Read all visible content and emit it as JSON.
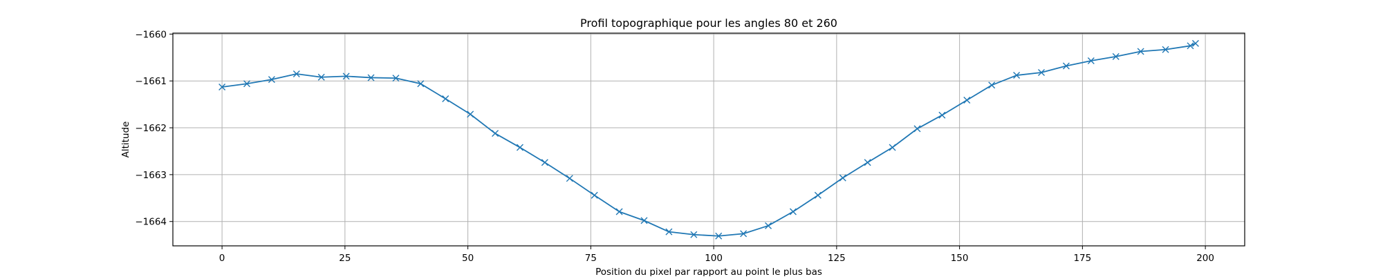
{
  "chart_data": {
    "type": "line",
    "title": "Profil topographique pour les angles 80 et 260",
    "xlabel": "Position du pixel par rapport au point le plus bas",
    "ylabel": "Altitude",
    "xlim": [
      -10,
      208
    ],
    "ylim": [
      -1664.52,
      -1659.98
    ],
    "xticks": [
      0,
      25,
      50,
      75,
      100,
      125,
      150,
      175,
      200
    ],
    "yticks": [
      -1660,
      -1661,
      -1662,
      -1663,
      -1664
    ],
    "x_tick_labels": [
      "0",
      "25",
      "50",
      "75",
      "100",
      "125",
      "150",
      "175",
      "200"
    ],
    "y_tick_labels": [
      "−1660",
      "−1661",
      "−1662",
      "−1663",
      "−1664"
    ],
    "grid": true,
    "line_color": "#1f77b4",
    "marker": "x",
    "series": [
      {
        "x": [
          0,
          5.05,
          10.1,
          15.15,
          20.2,
          25.25,
          30.3,
          35.35,
          40.4,
          45.45,
          50.5,
          55.55,
          60.6,
          65.65,
          70.7,
          75.75,
          80.8,
          85.85,
          90.9,
          95.95,
          101.0,
          106.05,
          111.1,
          116.15,
          121.2,
          126.25,
          131.3,
          136.35,
          141.4,
          146.45,
          151.5,
          156.55,
          161.6,
          166.65,
          171.7,
          176.75,
          181.8,
          186.85,
          191.9,
          196.95,
          198.0
        ],
        "y": [
          -1661.13,
          -1661.06,
          -1660.97,
          -1660.85,
          -1660.92,
          -1660.9,
          -1660.93,
          -1660.94,
          -1661.06,
          -1661.38,
          -1661.71,
          -1662.12,
          -1662.42,
          -1662.74,
          -1663.08,
          -1663.44,
          -1663.79,
          -1663.98,
          -1664.22,
          -1664.28,
          -1664.31,
          -1664.26,
          -1664.09,
          -1663.79,
          -1663.44,
          -1663.07,
          -1662.74,
          -1662.42,
          -1662.02,
          -1661.73,
          -1661.41,
          -1661.09,
          -1660.88,
          -1660.82,
          -1660.68,
          -1660.57,
          -1660.48,
          -1660.37,
          -1660.33,
          -1660.25,
          -1660.2
        ]
      }
    ]
  }
}
